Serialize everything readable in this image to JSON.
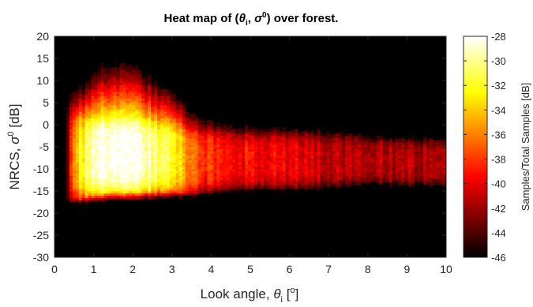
{
  "chart_data": {
    "type": "heatmap",
    "title": "Heat map of (θ_i, σ^0) over forest.",
    "title_parts": {
      "pre": "Heat map of (",
      "theta": "θ",
      "theta_sub": "i",
      "sep": ", ",
      "sigma": "σ",
      "sigma_sup": "0",
      "post": ") over forest."
    },
    "xlabel": "Look angle, θ_i [°]",
    "xlabel_parts": {
      "pre": "Look angle, ",
      "theta": "θ",
      "theta_sub": "i",
      "unit_open": " [",
      "degree": "o",
      "unit_close": "]"
    },
    "ylabel": "NRCS, σ^0 [dB]",
    "ylabel_parts": {
      "pre": "NRCS, ",
      "sigma": "σ",
      "sigma_sup": "0",
      "unit": " [dB]"
    },
    "xlim": [
      0,
      10
    ],
    "ylim": [
      -30,
      20
    ],
    "x_ticks": [
      "0",
      "1",
      "2",
      "3",
      "4",
      "5",
      "6",
      "7",
      "8",
      "9",
      "10"
    ],
    "y_ticks": [
      "20",
      "15",
      "10",
      "5",
      "0",
      "-5",
      "-10",
      "-15",
      "-20",
      "-25",
      "-30"
    ],
    "colorbar": {
      "label": "Samples/Total Samples [dB]",
      "range": [
        -46,
        -28
      ],
      "ticks": [
        "-28",
        "-30",
        "-32",
        "-34",
        "-36",
        "-38",
        "-40",
        "-42",
        "-44",
        "-46"
      ],
      "colormap": "hot"
    },
    "density_profile": [
      {
        "x": 0.4,
        "center": -7,
        "halfwidth": 10,
        "peak": -36,
        "upper_tail": 14
      },
      {
        "x": 0.6,
        "center": -7,
        "halfwidth": 9.5,
        "peak": -33,
        "upper_tail": 10
      },
      {
        "x": 1.0,
        "center": -7,
        "halfwidth": 8.5,
        "peak": -28,
        "upper_tail": 11
      },
      {
        "x": 1.5,
        "center": -6.5,
        "halfwidth": 8.5,
        "peak": -28,
        "upper_tail": 12
      },
      {
        "x": 2.0,
        "center": -6.5,
        "halfwidth": 8.5,
        "peak": -28.5,
        "upper_tail": 12
      },
      {
        "x": 2.5,
        "center": -7,
        "halfwidth": 8,
        "peak": -30,
        "upper_tail": 10
      },
      {
        "x": 3.0,
        "center": -7,
        "halfwidth": 8,
        "peak": -32,
        "upper_tail": 9
      },
      {
        "x": 3.5,
        "center": -8,
        "halfwidth": 7.5,
        "peak": -37,
        "upper_tail": 7
      },
      {
        "x": 4.0,
        "center": -8,
        "halfwidth": 7,
        "peak": -38.5,
        "upper_tail": 6
      },
      {
        "x": 5.0,
        "center": -8,
        "halfwidth": 6.5,
        "peak": -39.5,
        "upper_tail": 4
      },
      {
        "x": 6.0,
        "center": -8,
        "halfwidth": 6.5,
        "peak": -40,
        "upper_tail": 4
      },
      {
        "x": 7.0,
        "center": -8,
        "halfwidth": 6.5,
        "peak": -41,
        "upper_tail": 2
      },
      {
        "x": 8.0,
        "center": -8,
        "halfwidth": 5.5,
        "peak": -41,
        "upper_tail": 2
      },
      {
        "x": 9.0,
        "center": -8.5,
        "halfwidth": 5.5,
        "peak": -41.5,
        "upper_tail": 2
      },
      {
        "x": 9.8,
        "center": -8.5,
        "halfwidth": 5.5,
        "peak": -42,
        "upper_tail": 2
      }
    ],
    "grid": false
  }
}
